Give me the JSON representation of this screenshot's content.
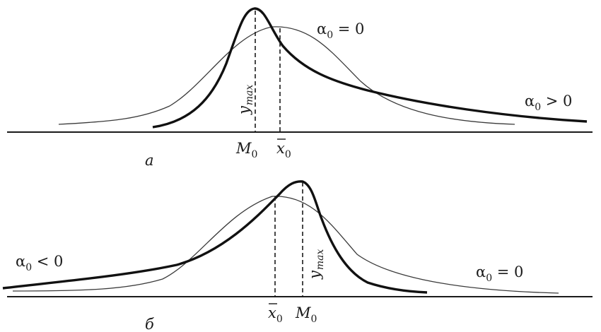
{
  "panel_a": {
    "caption": "а",
    "symmetric_label": {
      "sym": "α",
      "sub": "0",
      "rel": " = 0"
    },
    "skewed_label": {
      "sym": "α",
      "sub": "0",
      "rel": " > 0"
    },
    "peak_label": {
      "sym": "y",
      "sub": "max"
    },
    "mode_label": {
      "sym": "M",
      "sub": "0"
    },
    "mean_label": {
      "sym": "x",
      "sub": "0"
    }
  },
  "panel_b": {
    "caption": "б",
    "symmetric_label": {
      "sym": "α",
      "sub": "0",
      "rel": " = 0"
    },
    "skewed_label": {
      "sym": "α",
      "sub": "0",
      "rel": " < 0"
    },
    "peak_label": {
      "sym": "y",
      "sub": "max"
    },
    "mode_label": {
      "sym": "M",
      "sub": "0"
    },
    "mean_label": {
      "sym": "x",
      "sub": "0"
    }
  }
}
